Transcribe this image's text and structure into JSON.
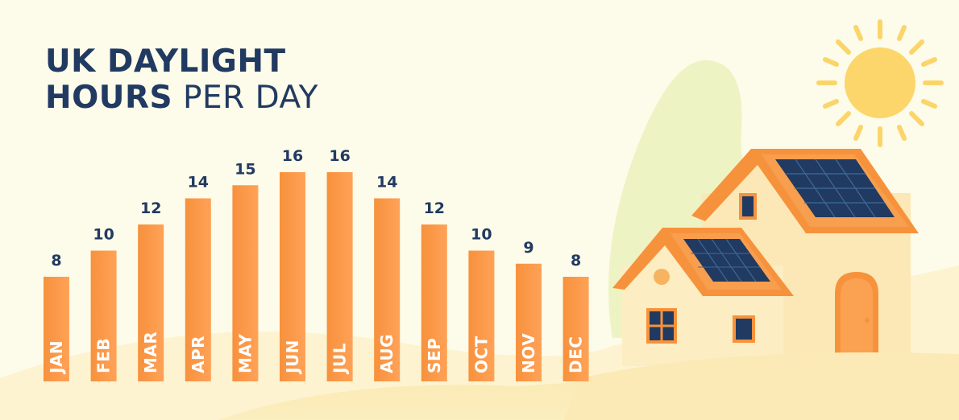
{
  "title": {
    "line1": "UK DAYLIGHT",
    "line2_bold": "HOURS",
    "line2_light": "PER DAY"
  },
  "colors": {
    "bar": "#f7913d",
    "bar_light": "#ffa257",
    "value_text": "#213a61",
    "background": "#fdfbe9"
  },
  "chart_data": {
    "type": "bar",
    "title": "UK DAYLIGHT HOURS PER DAY",
    "categories": [
      "JAN",
      "FEB",
      "MAR",
      "APR",
      "MAY",
      "JUN",
      "JUL",
      "AUG",
      "SEP",
      "OCT",
      "NOV",
      "DEC"
    ],
    "values": [
      8,
      10,
      12,
      14,
      15,
      16,
      16,
      14,
      12,
      10,
      9,
      8
    ],
    "ylim": [
      0,
      16
    ],
    "grid": false,
    "legend": "none"
  },
  "illustration": {
    "icons": [
      "sun-icon",
      "house-icon",
      "solar-panel-icon",
      "tree-icon",
      "door-icon",
      "window-icon"
    ]
  }
}
